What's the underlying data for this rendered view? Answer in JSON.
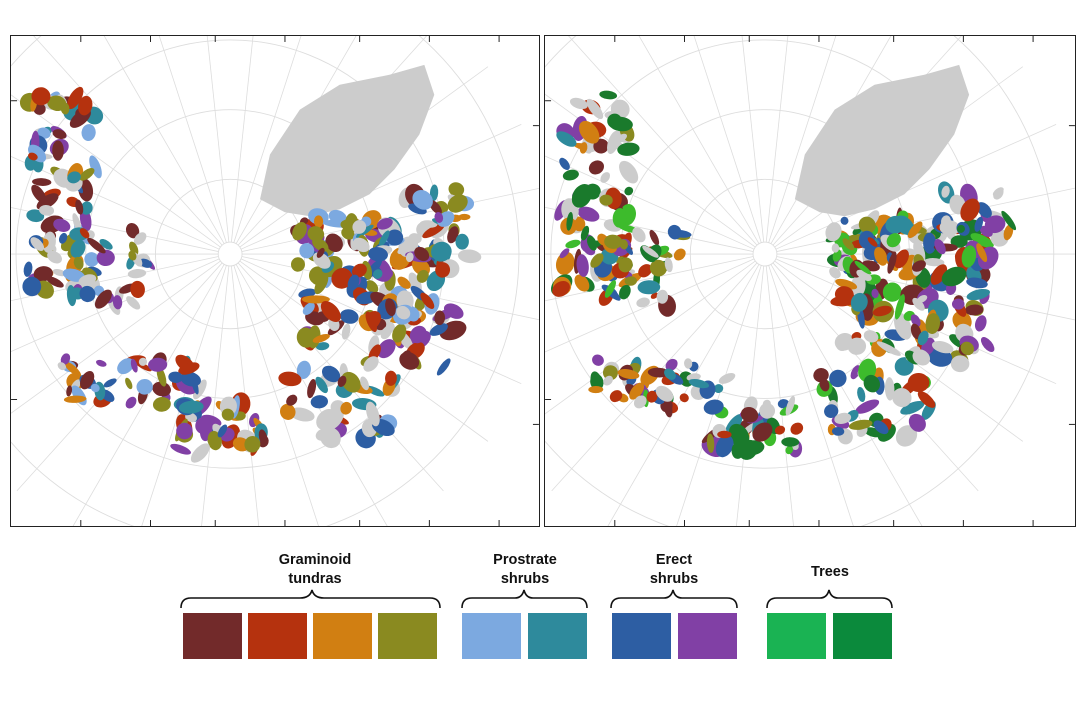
{
  "legend": {
    "groups": [
      {
        "label": "Graminoid\ntundras",
        "colors": [
          "#722a2a",
          "#b5320e",
          "#d17f12",
          "#8a8a20"
        ]
      },
      {
        "label": "Prostrate\nshrubs",
        "colors": [
          "#7ca9e0",
          "#2e8a9c"
        ]
      },
      {
        "label": "Erect\nshrubs",
        "colors": [
          "#2d5ea3",
          "#8140a5"
        ]
      },
      {
        "label": "Trees",
        "colors": [
          "#1ab353",
          "#0b8a3c"
        ]
      }
    ]
  },
  "maps": [
    {
      "id": "left",
      "palette": [
        "#722a2a",
        "#b5320e",
        "#d17f12",
        "#8a8a20",
        "#7ca9e0",
        "#2e8a9c",
        "#2d5ea3",
        "#8140a5"
      ]
    },
    {
      "id": "right",
      "palette": [
        "#722a2a",
        "#b5320e",
        "#d17f12",
        "#8a8a20",
        "#2e8a9c",
        "#2d5ea3",
        "#8140a5",
        "#3dbb2c",
        "#1a7a2c"
      ]
    }
  ],
  "colors": {
    "land_gray": "#cccccc",
    "grid": "#dddddd",
    "frame": "#222222"
  }
}
